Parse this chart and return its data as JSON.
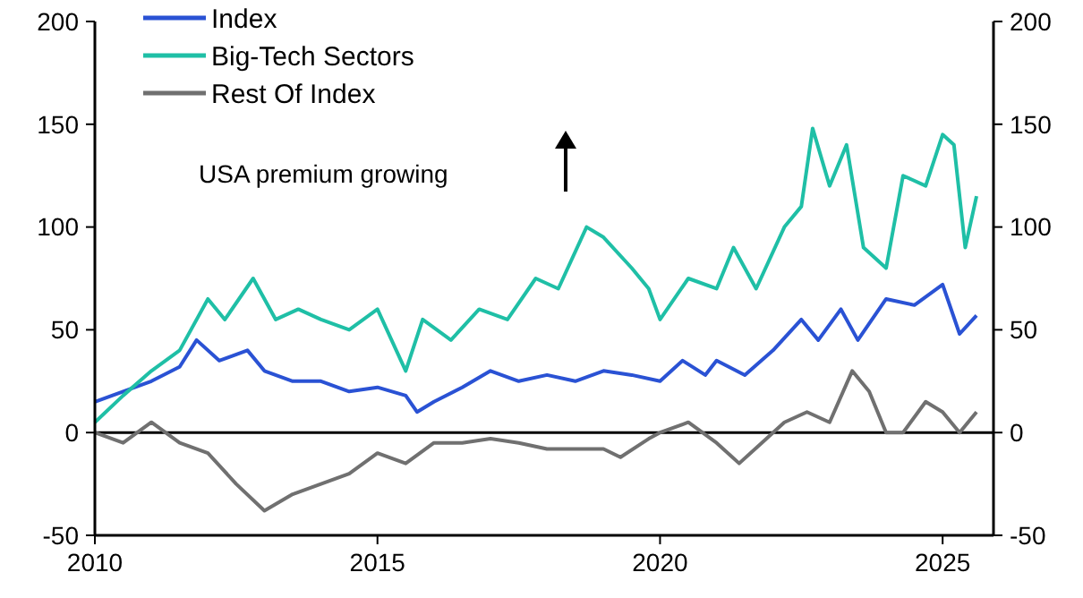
{
  "chart_data": {
    "type": "line",
    "xlim": [
      2010,
      2025.9
    ],
    "xticks": [
      2010,
      2015,
      2020,
      2025
    ],
    "ylim": [
      -50,
      200
    ],
    "yticks": [
      -50,
      0,
      50,
      100,
      150,
      200
    ],
    "y2lim": [
      -50,
      200
    ],
    "y2ticks": [
      -50,
      0,
      50,
      100,
      150,
      200
    ],
    "legend": "top left",
    "grid": false,
    "marker": "none",
    "line_style": "solid",
    "annotations": [
      "USA premium growing"
    ],
    "ref_lines": [
      {
        "axis": "y",
        "value": 0,
        "color": "#000000"
      }
    ],
    "series": [
      {
        "name": "Index",
        "color": "#2a52d4",
        "x": [
          2010,
          2010.5,
          2011,
          2011.5,
          2011.8,
          2012.2,
          2012.7,
          2013,
          2013.5,
          2014,
          2014.5,
          2015,
          2015.5,
          2015.7,
          2016,
          2016.5,
          2017,
          2017.5,
          2018,
          2018.5,
          2019,
          2019.5,
          2020,
          2020.4,
          2020.8,
          2021,
          2021.5,
          2022,
          2022.5,
          2022.8,
          2023.2,
          2023.5,
          2024,
          2024.5,
          2025,
          2025.3,
          2025.6
        ],
        "values": [
          15,
          20,
          25,
          32,
          45,
          35,
          40,
          30,
          25,
          25,
          20,
          22,
          18,
          10,
          15,
          22,
          30,
          25,
          28,
          25,
          30,
          28,
          25,
          35,
          28,
          35,
          28,
          40,
          55,
          45,
          60,
          45,
          65,
          62,
          72,
          48,
          57
        ]
      },
      {
        "name": "Big-Tech Sectors",
        "color": "#1fbfa6",
        "x": [
          2010,
          2010.5,
          2011,
          2011.5,
          2012,
          2012.3,
          2012.8,
          2013.2,
          2013.6,
          2014,
          2014.5,
          2015,
          2015.5,
          2015.8,
          2016.3,
          2016.8,
          2017.3,
          2017.8,
          2018.2,
          2018.7,
          2019,
          2019.5,
          2019.8,
          2020,
          2020.5,
          2021,
          2021.3,
          2021.7,
          2022.2,
          2022.5,
          2022.7,
          2023,
          2023.3,
          2023.6,
          2024,
          2024.3,
          2024.7,
          2025,
          2025.2,
          2025.4,
          2025.6
        ],
        "values": [
          5,
          18,
          30,
          40,
          65,
          55,
          75,
          55,
          60,
          55,
          50,
          60,
          30,
          55,
          45,
          60,
          55,
          75,
          70,
          100,
          95,
          80,
          70,
          55,
          75,
          70,
          90,
          70,
          100,
          110,
          148,
          120,
          140,
          90,
          80,
          125,
          120,
          145,
          140,
          90,
          115
        ]
      },
      {
        "name": "Rest Of Index",
        "color": "#707070",
        "x": [
          2010,
          2010.5,
          2011,
          2011.5,
          2012,
          2012.5,
          2013,
          2013.5,
          2014,
          2014.5,
          2015,
          2015.5,
          2016,
          2016.5,
          2017,
          2017.5,
          2018,
          2019,
          2019.3,
          2019.8,
          2020,
          2020.5,
          2021,
          2021.4,
          2021.8,
          2022.2,
          2022.6,
          2023,
          2023.4,
          2023.7,
          2024,
          2024.3,
          2024.7,
          2025,
          2025.3,
          2025.6
        ],
        "values": [
          0,
          -5,
          5,
          -5,
          -10,
          -25,
          -38,
          -30,
          -25,
          -20,
          -10,
          -15,
          -5,
          -5,
          -3,
          -5,
          -8,
          -8,
          -12,
          -3,
          0,
          5,
          -5,
          -15,
          -5,
          5,
          10,
          5,
          30,
          20,
          0,
          0,
          15,
          10,
          0,
          10
        ]
      }
    ]
  }
}
